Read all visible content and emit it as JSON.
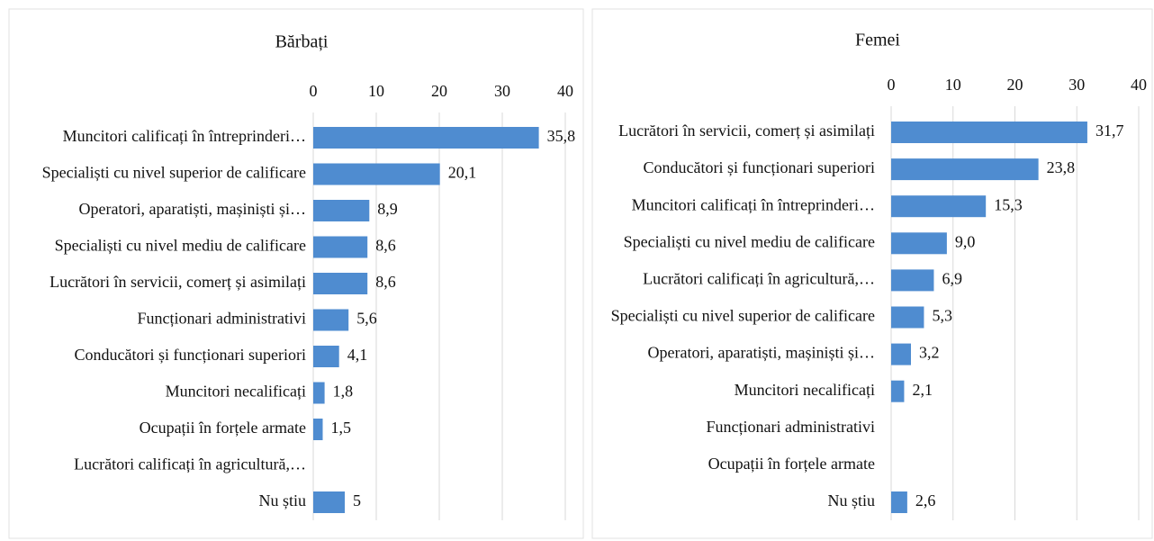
{
  "chart_data": [
    {
      "type": "bar",
      "orientation": "horizontal",
      "title": "Bărbați",
      "categories": [
        "Muncitori calificați în întreprinderi…",
        "Specialiști cu nivel superior de calificare",
        "Operatori, aparatiști, mașiniști și…",
        "Specialiști cu nivel mediu de calificare",
        "Lucrători în servicii, comerț și asimilați",
        "Funcționari administrativi",
        "Conducători și funcționari superiori",
        "Muncitori necalificați",
        "Ocupații în forțele armate",
        "Lucrători calificați în agricultură,…",
        "Nu știu"
      ],
      "values": [
        35.8,
        20.1,
        8.9,
        8.6,
        8.6,
        5.6,
        4.1,
        1.8,
        1.5,
        null,
        5
      ],
      "value_labels": [
        "35,8",
        "20,1",
        "8,9",
        "8,6",
        "8,6",
        "5,6",
        "4,1",
        "1,8",
        "1,5",
        null,
        "5"
      ],
      "color": "#4f8cd0",
      "xlim": [
        0,
        40
      ],
      "xticks": [
        0,
        10,
        20,
        30,
        40
      ],
      "grid": true
    },
    {
      "type": "bar",
      "orientation": "horizontal",
      "title": "Femei",
      "categories": [
        "Lucrători în servicii, comerț și asimilați",
        "Conducători și funcționari superiori",
        "Muncitori calificați în întreprinderi…",
        "Specialiști cu nivel mediu de calificare",
        "Lucrători calificați în agricultură,…",
        "Specialiști cu nivel superior de calificare",
        "Operatori, aparatiști, mașiniști și…",
        "Muncitori necalificați",
        "Funcționari administrativi",
        "Ocupații în forțele armate",
        "Nu știu"
      ],
      "values": [
        31.7,
        23.8,
        15.3,
        9.0,
        6.9,
        5.3,
        3.2,
        2.1,
        null,
        null,
        2.6
      ],
      "value_labels": [
        "31,7",
        "23,8",
        "15,3",
        "9,0",
        "6,9",
        "5,3",
        "3,2",
        "2,1",
        null,
        null,
        "2,6"
      ],
      "color": "#4f8cd0",
      "xlim": [
        0,
        40
      ],
      "xticks": [
        0,
        10,
        20,
        30,
        40
      ],
      "grid": true
    }
  ]
}
